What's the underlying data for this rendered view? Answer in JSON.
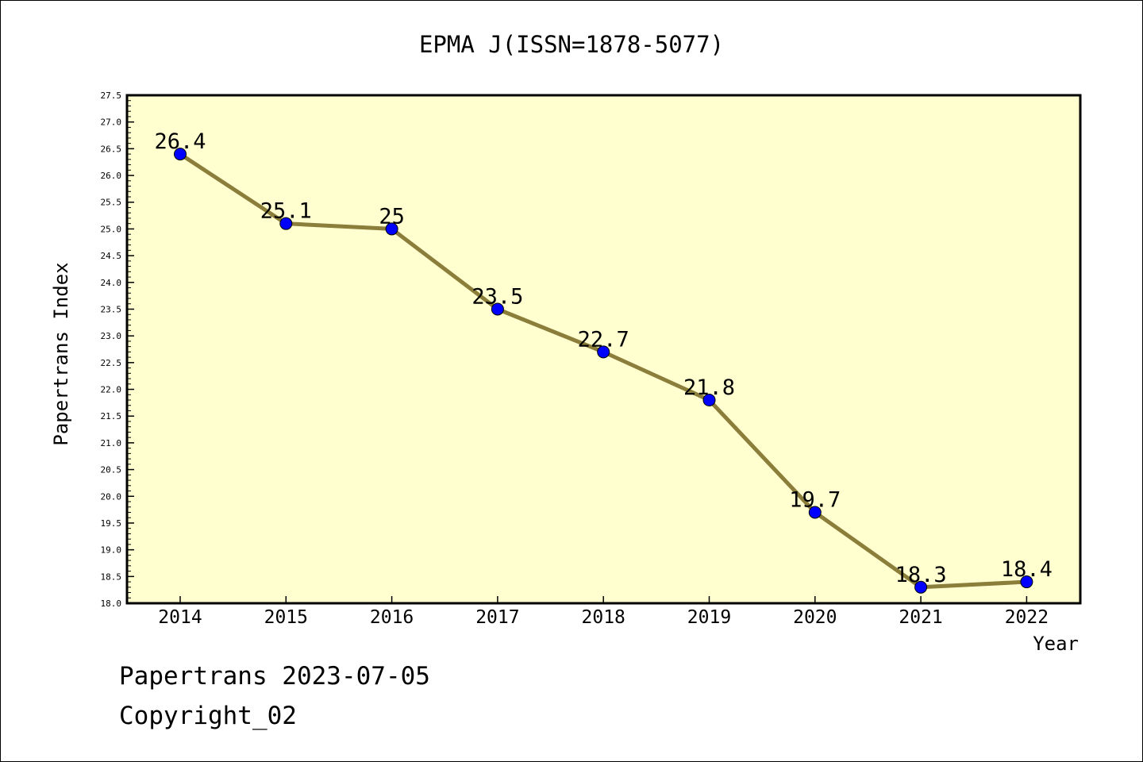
{
  "chart_data": {
    "type": "line",
    "title": "EPMA J(ISSN=1878-5077)",
    "xlabel": "Year",
    "ylabel": "Papertrans Index",
    "x": [
      "2014",
      "2015",
      "2016",
      "2017",
      "2018",
      "2019",
      "2020",
      "2021",
      "2022"
    ],
    "series": [
      {
        "values": [
          26.4,
          25.1,
          25.0,
          23.5,
          22.7,
          21.8,
          19.7,
          18.3,
          18.4
        ],
        "labels": [
          "26.4",
          "25.1",
          "25",
          "23.5",
          "22.7",
          "21.8",
          "19.7",
          "18.3",
          "18.4"
        ],
        "line_color": "#8b7d3a",
        "marker_color": "#0000ff"
      }
    ],
    "ylim": [
      18.0,
      27.5
    ],
    "yticks": [
      "18.0",
      "18.5",
      "19.0",
      "19.5",
      "20.0",
      "20.5",
      "21.0",
      "21.5",
      "22.0",
      "22.5",
      "23.0",
      "23.5",
      "24.0",
      "24.5",
      "25.0",
      "25.5",
      "26.0",
      "26.5",
      "27.0",
      "27.5"
    ],
    "plot_background": "#ffffd0",
    "grid": false,
    "legend": "none"
  },
  "footer": {
    "date_text": "Papertrans 2023-07-05",
    "copyright_text": "Copyright_02"
  }
}
